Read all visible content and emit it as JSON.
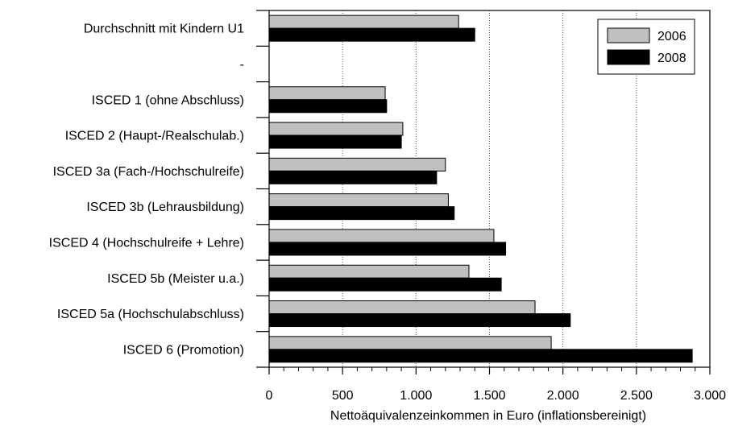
{
  "chart_data": {
    "type": "bar",
    "orientation": "horizontal",
    "categories": [
      "Durchschnitt mit Kindern U1",
      "-",
      "ISCED 1 (ohne Abschluss)",
      "ISCED 2 (Haupt-/Realschulab.)",
      "ISCED 3a (Fach-/Hochschulreife)",
      "ISCED 3b (Lehrausbildung)",
      "ISCED 4 (Hochschulreife + Lehre)",
      "ISCED 5b (Meister u.a.)",
      "ISCED 5a (Hochschulabschluss)",
      "ISCED 6 (Promotion)"
    ],
    "series": [
      {
        "name": "2006",
        "color": "#c0c0c0",
        "values": [
          1290,
          null,
          790,
          910,
          1200,
          1220,
          1530,
          1360,
          1810,
          1920
        ]
      },
      {
        "name": "2008",
        "color": "#000000",
        "values": [
          1400,
          null,
          800,
          900,
          1140,
          1260,
          1610,
          1580,
          2050,
          2880
        ]
      }
    ],
    "xlabel": "Nettoäquivalenzeinkommen in Euro (inflationsbereinigt)",
    "xlim": [
      0,
      3000
    ],
    "xticks": [
      0,
      500,
      1000,
      1500,
      2000,
      2500,
      3000
    ],
    "xtick_labels": [
      "0",
      "500",
      "1.000",
      "1.500",
      "2.000",
      "2.500",
      "3.000"
    ],
    "grid": "vertical dotted",
    "legend_position": "top-right"
  }
}
